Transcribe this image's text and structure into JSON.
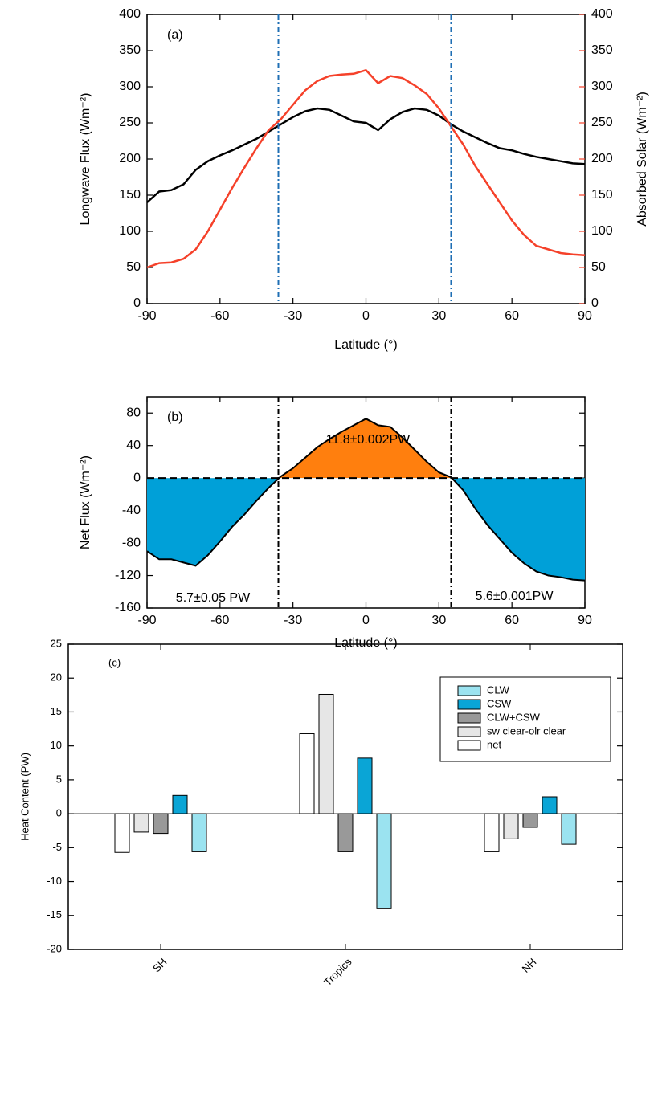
{
  "chart_data": [
    {
      "type": "line",
      "title": "(a)",
      "xlabel": "Latitude (°)",
      "ylabel": "Longwave Flux (Wm⁻²)",
      "y2label": "Absorbed Solar (Wm⁻²)",
      "x": [
        -90,
        -85,
        -80,
        -75,
        -70,
        -65,
        -60,
        -55,
        -50,
        -45,
        -40,
        -35,
        -30,
        -25,
        -20,
        -15,
        -10,
        -5,
        0,
        5,
        10,
        15,
        20,
        25,
        30,
        35,
        40,
        45,
        50,
        55,
        60,
        65,
        70,
        75,
        80,
        85,
        90
      ],
      "series": [
        {
          "color": "#000000",
          "values": [
            140,
            155,
            157,
            165,
            185,
            197,
            205,
            212,
            220,
            228,
            238,
            248,
            258,
            266,
            270,
            268,
            260,
            252,
            250,
            240,
            255,
            265,
            270,
            268,
            260,
            248,
            238,
            230,
            222,
            215,
            212,
            207,
            203,
            200,
            197,
            194,
            193
          ]
        },
        {
          "color": "#f5412a",
          "axis": "y2",
          "values": [
            50,
            56,
            57,
            62,
            75,
            100,
            130,
            160,
            188,
            215,
            240,
            255,
            275,
            295,
            308,
            315,
            317,
            318,
            323,
            305,
            315,
            312,
            302,
            290,
            270,
            245,
            220,
            190,
            165,
            140,
            115,
            95,
            80,
            75,
            70,
            68,
            67
          ]
        }
      ],
      "xlim": [
        -90,
        90
      ],
      "xticks": [
        -90,
        -60,
        -30,
        0,
        30,
        60,
        90
      ],
      "ylim": [
        0,
        400
      ],
      "yticks": [
        0,
        50,
        100,
        150,
        200,
        250,
        300,
        350,
        400
      ],
      "y2lim": [
        0,
        400
      ],
      "y2ticks": [
        0,
        50,
        100,
        150,
        200,
        250,
        300,
        350,
        400
      ],
      "vlines": [
        -36,
        35
      ],
      "vline_color": "#1f6fb4"
    },
    {
      "type": "area",
      "title": "(b)",
      "xlabel": "Latitude   (°)",
      "ylabel": "Net Flux (Wm⁻²)",
      "x": [
        -90,
        -85,
        -80,
        -75,
        -70,
        -65,
        -60,
        -55,
        -50,
        -45,
        -40,
        -35,
        -30,
        -25,
        -20,
        -15,
        -10,
        -5,
        0,
        5,
        10,
        15,
        20,
        25,
        30,
        35,
        40,
        45,
        50,
        55,
        60,
        65,
        70,
        75,
        80,
        85,
        90
      ],
      "values": [
        -90,
        -100,
        -100,
        -104,
        -108,
        -95,
        -78,
        -60,
        -45,
        -28,
        -12,
        2,
        12,
        25,
        38,
        48,
        57,
        65,
        73,
        65,
        63,
        50,
        35,
        20,
        7,
        1,
        -15,
        -38,
        -58,
        -75,
        -92,
        -105,
        -115,
        -120,
        -122,
        -125,
        -126
      ],
      "positive_color": "#ff7f0e",
      "negative_color": "#00a0d8",
      "xlim": [
        -90,
        90
      ],
      "xticks": [
        -90,
        -60,
        -30,
        0,
        30,
        60,
        90
      ],
      "ylim": [
        -160,
        100
      ],
      "yticks": [
        -160,
        -120,
        -80,
        -40,
        0,
        40,
        80
      ],
      "vlines": [
        -36,
        35
      ],
      "vline_color": "#000000",
      "annotations": [
        "11.8±0.002PW",
        "5.7±0.05 PW",
        "5.6±0.001PW"
      ]
    },
    {
      "type": "bar",
      "title": "(c)",
      "ylabel": "Heat Content (PW)",
      "categories": [
        "SH",
        "Tropics",
        "NH"
      ],
      "series": [
        {
          "name": "CLW",
          "color": "#9be3f0",
          "values": [
            -5.6,
            -14,
            -4.5
          ]
        },
        {
          "name": "CSW",
          "color": "#0aa5d6",
          "values": [
            2.7,
            8.2,
            2.5
          ]
        },
        {
          "name": "CLW+CSW",
          "color": "#999999",
          "values": [
            -2.9,
            -5.6,
            -2.0
          ]
        },
        {
          "name": "sw clear-olr clear",
          "color": "#e6e6e6",
          "values": [
            -2.7,
            17.6,
            -3.7
          ]
        },
        {
          "name": "net",
          "color": "#ffffff",
          "values": [
            -5.7,
            11.8,
            -5.6
          ]
        }
      ],
      "ylim": [
        -20,
        25
      ],
      "yticks": [
        -20,
        -15,
        -10,
        -5,
        0,
        5,
        10,
        15,
        20,
        25
      ],
      "legend": "upper right"
    }
  ]
}
